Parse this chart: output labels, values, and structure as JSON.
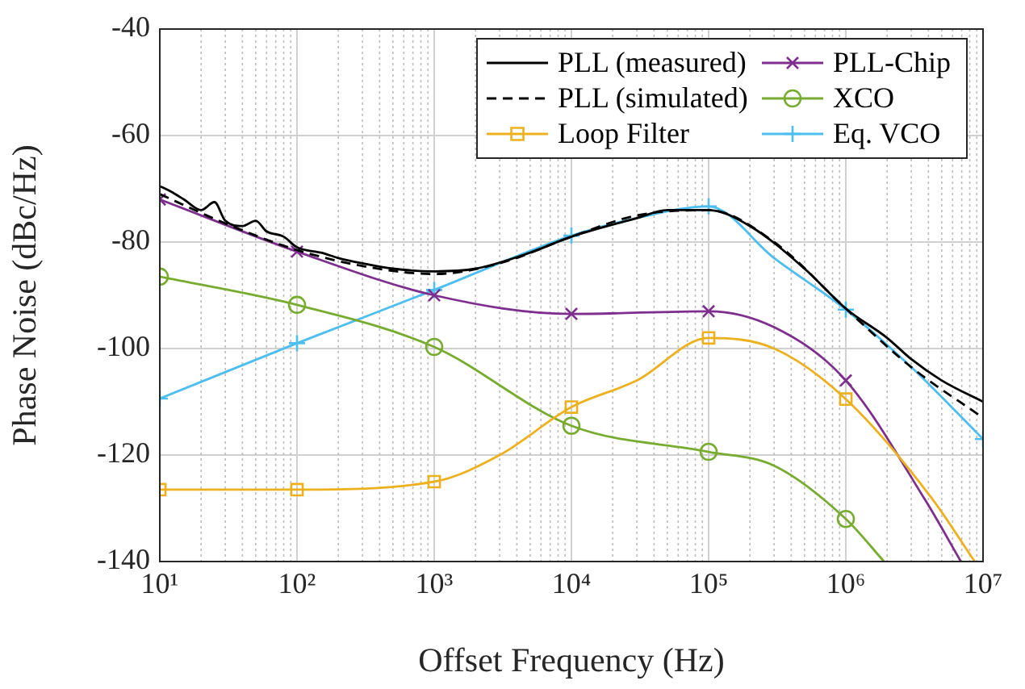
{
  "chart_data": {
    "type": "line",
    "xlabel": "Offset Frequency (Hz)",
    "ylabel": "Phase Noise (dBc/Hz)",
    "log": "x",
    "grid": true,
    "legend": "top right",
    "xlim": [
      10,
      10000000
    ],
    "ylim": [
      -140,
      -40
    ],
    "xticks": [
      {
        "value": 10,
        "label": "10¹"
      },
      {
        "value": 100,
        "label": "10²"
      },
      {
        "value": 1000,
        "label": "10³"
      },
      {
        "value": 10000,
        "label": "10⁴"
      },
      {
        "value": 100000,
        "label": "10⁵"
      },
      {
        "value": 1000000,
        "label": "10⁶"
      },
      {
        "value": 10000000,
        "label": "10⁷"
      }
    ],
    "yticks": [
      -140,
      -120,
      -100,
      -80,
      -60,
      -40
    ],
    "series": [
      {
        "name": "PLL (measured)",
        "color": "#000000",
        "marker": "none",
        "line_style": "solid",
        "x": [
          10,
          12,
          15,
          20,
          25,
          30,
          40,
          50,
          60,
          80,
          100,
          150,
          200,
          300,
          500,
          1000,
          2000,
          5000,
          10000,
          30000,
          50000,
          100000,
          200000,
          500000,
          1000000,
          2000000,
          3000000,
          5000000,
          10000000
        ],
        "values": [
          -69.5,
          -70.5,
          -72,
          -74,
          -72.5,
          -76,
          -77,
          -76,
          -78,
          -79,
          -81,
          -82,
          -83,
          -84,
          -85,
          -85.5,
          -85,
          -82,
          -79,
          -75.5,
          -74,
          -74,
          -77,
          -85,
          -92.5,
          -98,
          -102,
          -106,
          -110
        ]
      },
      {
        "name": "PLL (simulated)",
        "color": "#000000",
        "marker": "none",
        "line_style": "dashed",
        "x": [
          10,
          30,
          100,
          300,
          1000,
          3000,
          10000,
          30000,
          100000,
          300000,
          1000000,
          3000000,
          10000000
        ],
        "values": [
          -71,
          -76.5,
          -81.5,
          -84.5,
          -86,
          -84,
          -79,
          -75,
          -74,
          -80,
          -92.5,
          -103.5,
          -113
        ]
      },
      {
        "name": "Loop Filter",
        "color": "#edb120",
        "marker": "square",
        "line_style": "solid",
        "x": [
          10,
          100,
          1000,
          3000,
          10000,
          30000,
          100000,
          300000,
          1000000,
          4200000,
          8700000
        ],
        "values": [
          -126.5,
          -126.5,
          -125,
          -120,
          -111,
          -106,
          -98,
          -100,
          -109.5,
          -128,
          -140
        ]
      },
      {
        "name": "PLL-Chip",
        "color": "#7e2f8e",
        "marker": "x",
        "line_style": "solid",
        "x": [
          10,
          100,
          1000,
          10000,
          100000,
          300000,
          1000000,
          3800000,
          6900000
        ],
        "values": [
          -72,
          -81.8,
          -90,
          -93.5,
          -93,
          -96,
          -106,
          -128.5,
          -140
        ]
      },
      {
        "name": "XCO",
        "color": "#77ac30",
        "marker": "circle",
        "line_style": "solid",
        "x": [
          10,
          100,
          1000,
          10000,
          100000,
          300000,
          1000000,
          1900000
        ],
        "values": [
          -86.5,
          -91.8,
          -99.7,
          -114.5,
          -119.4,
          -122,
          -132,
          -140
        ]
      },
      {
        "name": "Eq. VCO",
        "color": "#4dbeee",
        "marker": "cross",
        "line_style": "solid",
        "x": [
          10,
          100,
          1000,
          10000,
          30000,
          100000,
          300000,
          1000000,
          3000000,
          10000000
        ],
        "values": [
          -109.4,
          -99,
          -89,
          -78.8,
          -75.5,
          -73.3,
          -83,
          -92.7,
          -103.5,
          -117
        ]
      }
    ]
  }
}
